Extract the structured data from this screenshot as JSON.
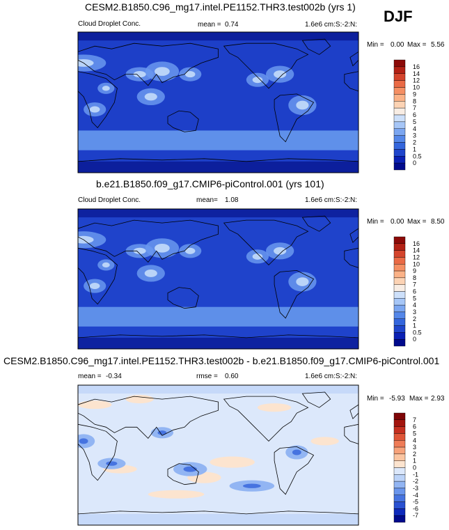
{
  "season": "DJF",
  "colors": {
    "ctrl_levels": [
      "#000a8c",
      "#0a20b4",
      "#1f45cc",
      "#3466dd",
      "#5487e9",
      "#7ba6f1",
      "#a6c6f7",
      "#cde0fa",
      "#f8ede4",
      "#fcd3b4",
      "#fbb287",
      "#f58f63",
      "#ea6a45",
      "#d4442c",
      "#b32115",
      "#8c0a08"
    ],
    "diff_levels": [
      "#000a8c",
      "#0e2abb",
      "#2950d1",
      "#4673e0",
      "#6a95ec",
      "#92b5f3",
      "#bcd3f8",
      "#dce8fb",
      "#fce4cf",
      "#fbc5a1",
      "#f7a27a",
      "#ef7c57",
      "#df5537",
      "#c52f1f",
      "#a3140d",
      "#7e0506"
    ]
  },
  "chart_data": [
    {
      "type": "heatmap",
      "name": "test_case",
      "title": "CESM2.B1850.C96_mg17.intel.PE1152.THR3.test002b (yrs 1)",
      "variable": "Cloud Droplet Conc.",
      "mean_label": "mean =",
      "mean": "0.74",
      "units": "1.6e6 cm:S:-2:N:",
      "min_label": "Min =",
      "min": "0.00",
      "max_label": "Max =",
      "max": "5.56",
      "colorbar_levels": [
        "0",
        "0.5",
        "1",
        "2",
        "3",
        "4",
        "5",
        "6",
        "7",
        "8",
        "9",
        "10",
        "12",
        "14",
        "16"
      ]
    },
    {
      "type": "heatmap",
      "name": "control_case",
      "title": "b.e21.B1850.f09_g17.CMIP6-piControl.001 (yrs 101)",
      "variable": "Cloud Droplet Conc.",
      "mean_label": "mean=",
      "mean": "1.08",
      "units": "1.6e6 cm:S:-2:N:",
      "min_label": "Min =",
      "min": "0.00",
      "max_label": "Max =",
      "max": "8.50",
      "colorbar_levels": [
        "0",
        "0.5",
        "1",
        "2",
        "3",
        "4",
        "5",
        "6",
        "7",
        "8",
        "9",
        "10",
        "12",
        "14",
        "16"
      ]
    },
    {
      "type": "heatmap",
      "name": "difference",
      "title": "CESM2.B1850.C96_mg17.intel.PE1152.THR3.test002b - b.e21.B1850.f09_g17.CMIP6-piControl.001",
      "mean_label": "mean =",
      "mean": "-0.34",
      "rmse_label": "rmse =",
      "rmse": "0.60",
      "units": "1.6e6 cm:S:-2:N:",
      "min_label": "Min =",
      "min": "-5.93",
      "max_label": "Max =",
      "max": "2.93",
      "colorbar_levels": [
        "-7",
        "-6",
        "-5",
        "-4",
        "-3",
        "-2",
        "-1",
        "0",
        "1",
        "2",
        "3",
        "4",
        "5",
        "6",
        "7"
      ]
    }
  ]
}
